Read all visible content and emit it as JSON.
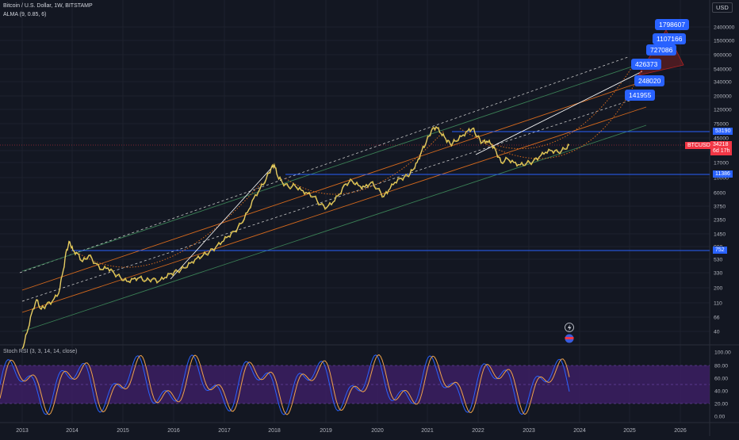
{
  "header": {
    "title": "Bitcoin / U.S. Dollar, 1W, BITSTAMP",
    "indicator": "ALMA (9, 0.85, 6)",
    "currency": "USD"
  },
  "price_axis": {
    "ticks": [
      "2400000",
      "1500000",
      "900000",
      "540000",
      "340000",
      "200000",
      "120000",
      "75000",
      "45000",
      "27000",
      "17000",
      "10000",
      "6000",
      "3750",
      "2350",
      "1450",
      "900",
      "530",
      "330",
      "200",
      "110",
      "66",
      "40"
    ],
    "tick_y": [
      34,
      51,
      69,
      87,
      103,
      121,
      138,
      156,
      174,
      190,
      205,
      224,
      243,
      260,
      277,
      295,
      311,
      327,
      344,
      363,
      382,
      400,
      418
    ]
  },
  "level_tags": {
    "top": "53190",
    "mid": "11386",
    "low": "752"
  },
  "current_price": {
    "symbol": "BTCUSD",
    "price": "34218",
    "countdown": "6d 17h"
  },
  "callouts": [
    "1798607",
    "1107166",
    "727086",
    "426373",
    "248020",
    "141955"
  ],
  "time_axis": {
    "labels": [
      "2013",
      "2014",
      "2015",
      "2016",
      "2017",
      "2018",
      "2019",
      "2020",
      "2021",
      "2022",
      "2023",
      "2024",
      "2025",
      "2026"
    ],
    "label_x": [
      28,
      91,
      155,
      219,
      283,
      346,
      411,
      476,
      539,
      603,
      667,
      731,
      794,
      858
    ]
  },
  "rsi_panel": {
    "label": "Stoch RSI (3, 3, 14, 14, close)",
    "ticks": [
      "100.00",
      "80.00",
      "60.00",
      "40.00",
      "20.00",
      "0.00"
    ]
  },
  "colors": {
    "background": "#131722",
    "price_line": "#e0c34a",
    "channel_green": "#3a7f55",
    "channel_orange": "#d2681d",
    "level_blue": "#2962ff",
    "rsi_band": "#3c1f63",
    "rsi_k": "#2962ff",
    "rsi_d": "#f0a34a",
    "current_price": "#f23645"
  },
  "icons": [
    "lightning-icon",
    "flag-icon"
  ]
}
